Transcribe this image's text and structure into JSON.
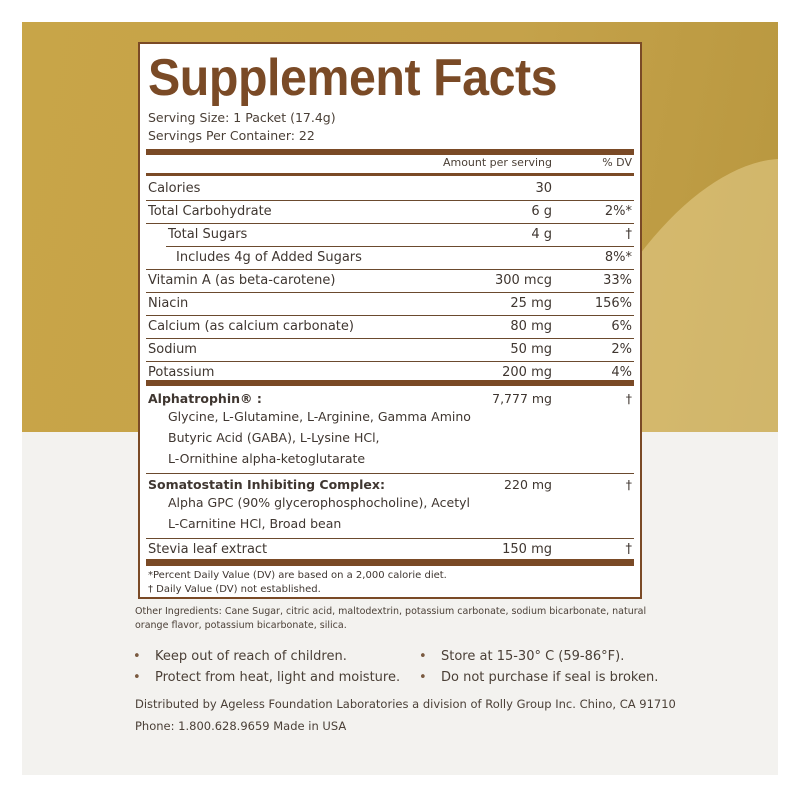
{
  "label": {
    "title": "Supplement Facts",
    "serving_size": "Serving Size: 1 Packet (17.4g)",
    "servings_per_container": "Servings Per Container: 22",
    "col_amount": "Amount per serving",
    "col_dv": "% DV",
    "nutrients": [
      {
        "name": "Calories",
        "amount": "30",
        "dv": ""
      },
      {
        "name": "Total Carbohydrate",
        "amount": "6 g",
        "dv": "2%*"
      },
      {
        "name": "Total Sugars",
        "amount": "4 g",
        "dv": "†"
      },
      {
        "name": "Includes 4g of  Added Sugars",
        "amount": "",
        "dv": "8%*"
      },
      {
        "name": "Vitamin A (as beta-carotene)",
        "amount": "300 mcg",
        "dv": "33%"
      },
      {
        "name": "Niacin",
        "amount": "25 mg",
        "dv": "156%"
      },
      {
        "name": "Calcium (as calcium carbonate)",
        "amount": "80 mg",
        "dv": "6%"
      },
      {
        "name": "Sodium",
        "amount": "50 mg",
        "dv": "2%"
      },
      {
        "name": "Potassium",
        "amount": "200 mg",
        "dv": "4%"
      }
    ],
    "blends": [
      {
        "name": "Alphatrophin® :",
        "amount": "7,777 mg",
        "dv": "†",
        "lines": [
          "Glycine, L-Glutamine, L-Arginine, Gamma Amino",
          "Butyric Acid (GABA), L-Lysine HCl,",
          "L-Ornithine alpha-ketoglutarate"
        ]
      },
      {
        "name": "Somatostatin Inhibiting Complex:",
        "amount": "220 mg",
        "dv": "†",
        "lines": [
          "Alpha GPC  (90% glycerophosphocholine), Acetyl",
          "L-Carnitine HCl, Broad bean"
        ]
      }
    ],
    "stevia": {
      "name": "Stevia leaf extract",
      "amount": "150 mg",
      "dv": "†"
    },
    "footnote1": "*Percent  Daily Value (DV) are based on a 2,000 calorie diet.",
    "footnote2": "† Daily Value (DV) not established."
  },
  "other_ingredients": "Other Ingredients: Cane Sugar, citric acid, maltodextrin, potassium carbonate, sodium bicarbonate, natural orange flavor, potassium bicarbonate, silica.",
  "warnings": [
    "Keep out of reach of children.",
    "Store at 15-30° C (59-86°F).",
    "Protect  from heat, light and moisture.",
    "Do not purchase if seal is broken."
  ],
  "distributor": "Distributed by Ageless Foundation Laboratories a division of Rolly Group Inc.  Chino, CA 91710",
  "phone": "Phone: 1.800.628.9659  Made in USA",
  "colors": {
    "brown": "#7a4a26",
    "gold": "#c8a548"
  }
}
